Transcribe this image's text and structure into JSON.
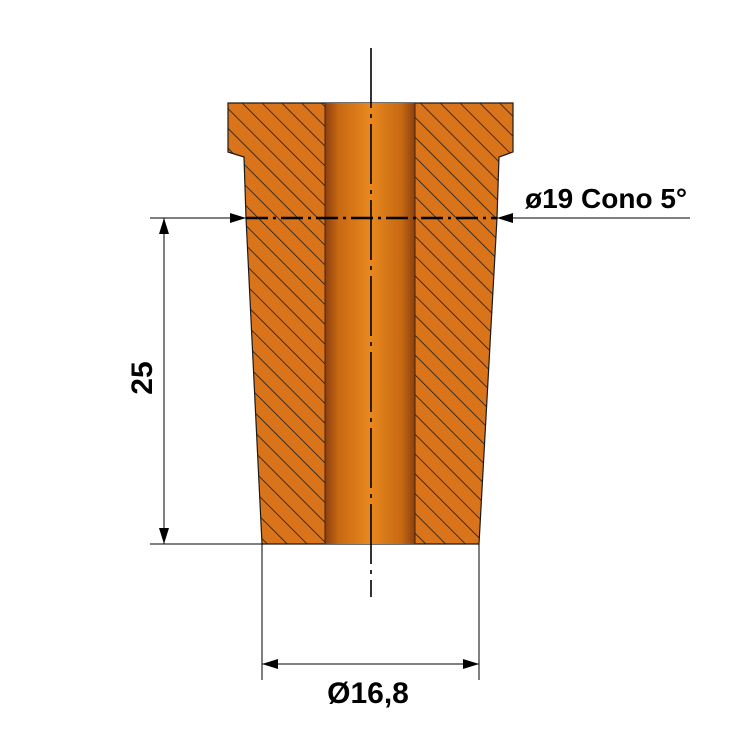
{
  "drawing": {
    "dimensions": {
      "cone_label": "ø19 Cono 5°",
      "height_label": "25",
      "bottom_diameter_label": "Ø16,8"
    },
    "colors": {
      "body_fill": "#d9741b",
      "hatch": "#1a1a1a",
      "bore_light": "#e8891f",
      "bore_dark": "#8a4010",
      "line": "#000000"
    }
  }
}
